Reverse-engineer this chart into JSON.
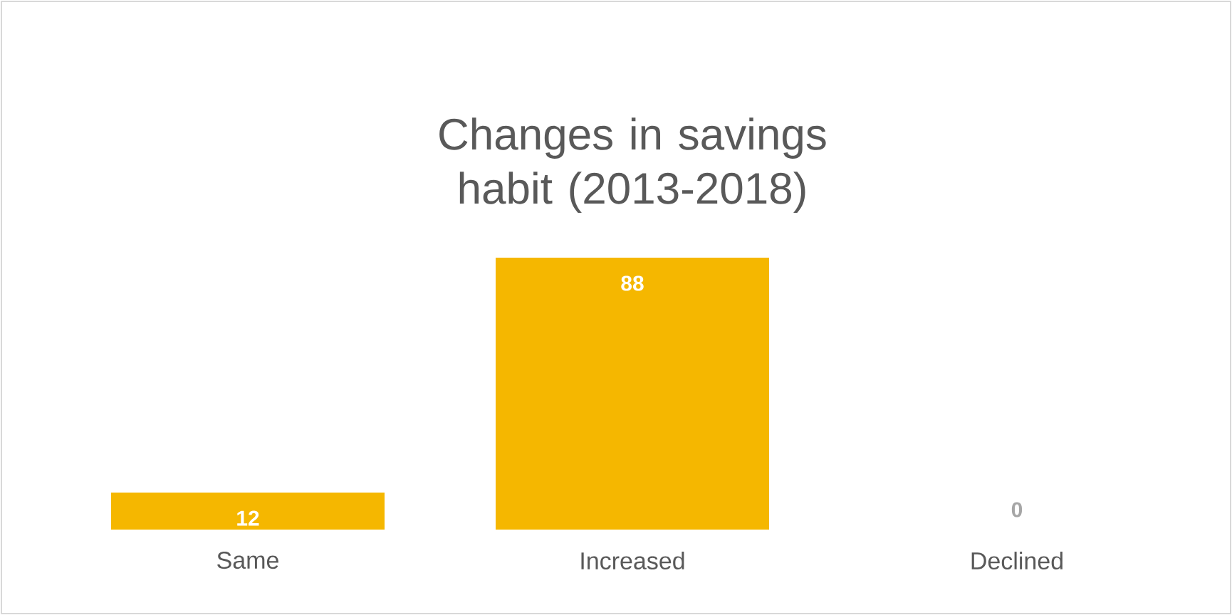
{
  "chart_data": {
    "type": "bar",
    "title": "Changes in savings habit (2013-2018)",
    "categories": [
      "Same",
      "Increased",
      "Declined"
    ],
    "values": [
      12,
      88,
      0
    ],
    "color": "#f5b700",
    "data_labels": true
  }
}
